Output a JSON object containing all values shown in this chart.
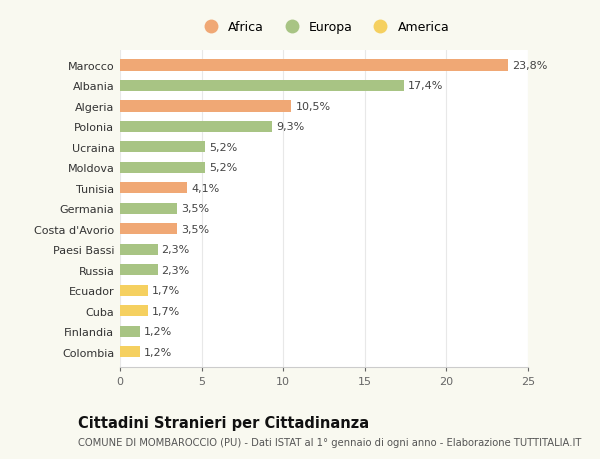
{
  "categories": [
    "Marocco",
    "Albania",
    "Algeria",
    "Polonia",
    "Ucraina",
    "Moldova",
    "Tunisia",
    "Germania",
    "Costa d'Avorio",
    "Paesi Bassi",
    "Russia",
    "Ecuador",
    "Cuba",
    "Finlandia",
    "Colombia"
  ],
  "values": [
    23.8,
    17.4,
    10.5,
    9.3,
    5.2,
    5.2,
    4.1,
    3.5,
    3.5,
    2.3,
    2.3,
    1.7,
    1.7,
    1.2,
    1.2
  ],
  "labels": [
    "23,8%",
    "17,4%",
    "10,5%",
    "9,3%",
    "5,2%",
    "5,2%",
    "4,1%",
    "3,5%",
    "3,5%",
    "2,3%",
    "2,3%",
    "1,7%",
    "1,7%",
    "1,2%",
    "1,2%"
  ],
  "colors": [
    "#f0a875",
    "#a8c484",
    "#f0a875",
    "#a8c484",
    "#a8c484",
    "#a8c484",
    "#f0a875",
    "#a8c484",
    "#f0a875",
    "#a8c484",
    "#a8c484",
    "#f5d060",
    "#f5d060",
    "#a8c484",
    "#f5d060"
  ],
  "legend_labels": [
    "Africa",
    "Europa",
    "America"
  ],
  "legend_colors": [
    "#f0a875",
    "#a8c484",
    "#f5d060"
  ],
  "title": "Cittadini Stranieri per Cittadinanza",
  "subtitle": "COMUNE DI MOMBAROCCIO (PU) - Dati ISTAT al 1° gennaio di ogni anno - Elaborazione TUTTITALIA.IT",
  "xlim": [
    0,
    25
  ],
  "xticks": [
    0,
    5,
    10,
    15,
    20,
    25
  ],
  "plot_bg": "#ffffff",
  "fig_bg": "#f9f9f0",
  "grid_color": "#e8e8e8",
  "bar_height": 0.55,
  "label_fontsize": 8.0,
  "title_fontsize": 10.5,
  "subtitle_fontsize": 7.2,
  "ytick_fontsize": 8.0,
  "xtick_fontsize": 8.0,
  "legend_fontsize": 9.0
}
